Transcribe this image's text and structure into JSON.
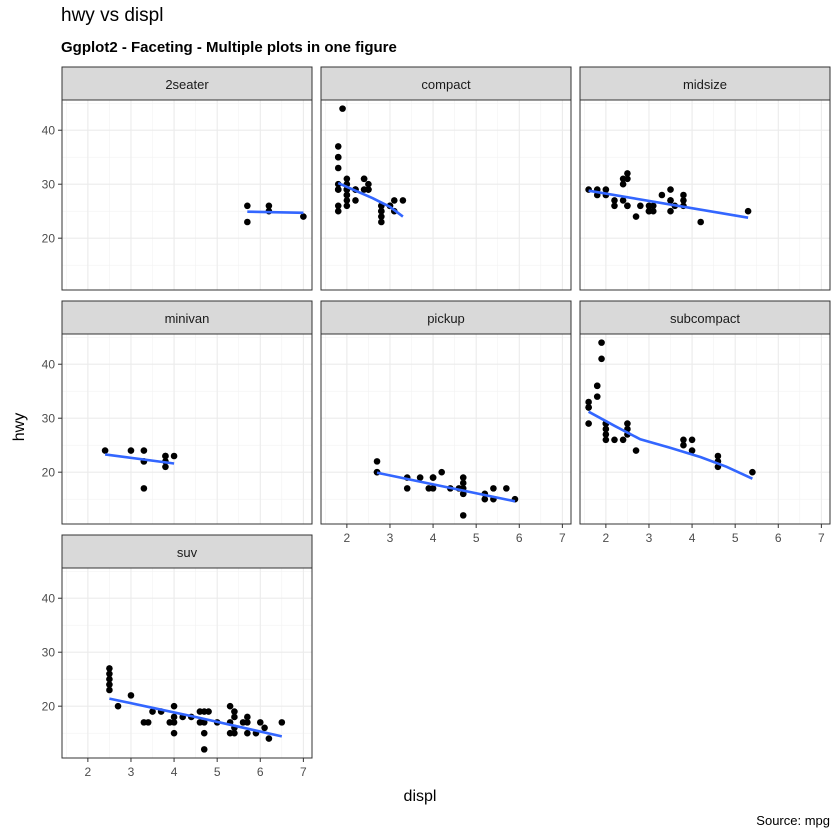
{
  "chart_data": {
    "type": "scatter",
    "title": "hwy vs displ",
    "subtitle": "Ggplot2 - Faceting - Multiple plots in one figure",
    "xlabel": "displ",
    "ylabel": "hwy",
    "caption": "Source: mpg",
    "xlim": [
      1.4,
      7.2
    ],
    "ylim": [
      10.4,
      45.6
    ],
    "x_ticks": [
      2,
      3,
      4,
      5,
      6,
      7
    ],
    "y_ticks": [
      20,
      30,
      40
    ],
    "grid": true,
    "theme": "bw",
    "point_color": "#000000",
    "smooth_color": "#3366ff",
    "strip_fill": "#d9d9d9",
    "facets": [
      {
        "label": "2seater",
        "points": [
          [
            5.7,
            26
          ],
          [
            5.7,
            23
          ],
          [
            6.2,
            26
          ],
          [
            6.2,
            25
          ],
          [
            7.0,
            24
          ]
        ],
        "smooth": [
          [
            5.7,
            24.9
          ],
          [
            7.0,
            24.7
          ]
        ]
      },
      {
        "label": "compact",
        "points": [
          [
            1.8,
            29
          ],
          [
            1.8,
            29
          ],
          [
            2.0,
            31
          ],
          [
            2.0,
            30
          ],
          [
            2.8,
            26
          ],
          [
            2.8,
            26
          ],
          [
            3.1,
            27
          ],
          [
            1.8,
            26
          ],
          [
            1.8,
            25
          ],
          [
            2.0,
            28
          ],
          [
            2.0,
            27
          ],
          [
            2.8,
            25
          ],
          [
            2.8,
            25
          ],
          [
            3.1,
            25
          ],
          [
            2.2,
            27
          ],
          [
            2.2,
            29
          ],
          [
            2.4,
            31
          ],
          [
            2.4,
            31
          ],
          [
            3.0,
            26
          ],
          [
            3.0,
            26
          ],
          [
            3.3,
            27
          ],
          [
            1.8,
            30
          ],
          [
            1.8,
            33
          ],
          [
            1.8,
            35
          ],
          [
            1.8,
            37
          ],
          [
            1.8,
            35
          ],
          [
            1.9,
            44
          ],
          [
            2.0,
            29
          ],
          [
            2.0,
            26
          ],
          [
            2.0,
            29
          ],
          [
            2.5,
            29
          ],
          [
            2.5,
            29
          ],
          [
            2.8,
            23
          ],
          [
            2.8,
            24
          ],
          [
            2.2,
            29
          ],
          [
            2.4,
            29
          ],
          [
            2.5,
            30
          ],
          [
            2.0,
            28
          ],
          [
            2.0,
            29
          ]
        ],
        "smooth": [
          [
            1.8,
            30.2
          ],
          [
            2.2,
            28.8
          ],
          [
            2.6,
            27.4
          ],
          [
            3.0,
            25.8
          ],
          [
            3.3,
            24.0
          ]
        ]
      },
      {
        "label": "midsize",
        "points": [
          [
            1.6,
            29
          ],
          [
            1.8,
            29
          ],
          [
            1.8,
            28
          ],
          [
            2.0,
            29
          ],
          [
            2.0,
            28
          ],
          [
            2.2,
            27
          ],
          [
            2.4,
            30
          ],
          [
            2.4,
            31
          ],
          [
            2.5,
            32
          ],
          [
            2.5,
            26
          ],
          [
            2.5,
            26
          ],
          [
            2.5,
            31
          ],
          [
            2.2,
            26
          ],
          [
            2.7,
            24
          ],
          [
            2.8,
            26
          ],
          [
            3.0,
            25
          ],
          [
            3.0,
            26
          ],
          [
            3.1,
            25
          ],
          [
            3.1,
            26
          ],
          [
            3.3,
            28
          ],
          [
            3.5,
            27
          ],
          [
            3.5,
            29
          ],
          [
            3.5,
            27
          ],
          [
            3.5,
            25
          ],
          [
            3.6,
            26
          ],
          [
            3.8,
            26
          ],
          [
            3.8,
            28
          ],
          [
            3.8,
            27
          ],
          [
            4.2,
            23
          ],
          [
            5.3,
            25
          ],
          [
            2.4,
            27
          ],
          [
            3.0,
            25
          ]
        ],
        "smooth": [
          [
            1.6,
            28.8
          ],
          [
            5.3,
            23.8
          ]
        ]
      },
      {
        "label": "minivan",
        "points": [
          [
            2.4,
            24
          ],
          [
            3.0,
            24
          ],
          [
            3.3,
            22
          ],
          [
            3.3,
            22
          ],
          [
            3.3,
            24
          ],
          [
            3.3,
            17
          ],
          [
            3.8,
            22
          ],
          [
            3.8,
            21
          ],
          [
            3.8,
            23
          ],
          [
            4.0,
            23
          ],
          [
            3.8,
            23
          ]
        ],
        "smooth": [
          [
            2.4,
            23.3
          ],
          [
            4.0,
            21.6
          ]
        ]
      },
      {
        "label": "pickup",
        "points": [
          [
            2.7,
            20
          ],
          [
            2.7,
            22
          ],
          [
            2.7,
            20
          ],
          [
            3.4,
            17
          ],
          [
            3.4,
            19
          ],
          [
            3.7,
            19
          ],
          [
            3.9,
            17
          ],
          [
            4.0,
            17
          ],
          [
            4.0,
            19
          ],
          [
            4.2,
            20
          ],
          [
            4.4,
            17
          ],
          [
            4.6,
            17
          ],
          [
            4.7,
            16
          ],
          [
            4.7,
            12
          ],
          [
            4.7,
            17
          ],
          [
            4.7,
            16
          ],
          [
            4.7,
            19
          ],
          [
            5.2,
            15
          ],
          [
            5.2,
            16
          ],
          [
            5.4,
            17
          ],
          [
            5.4,
            15
          ],
          [
            5.7,
            17
          ],
          [
            5.9,
            15
          ],
          [
            4.0,
            19
          ],
          [
            4.7,
            18
          ]
        ],
        "smooth": [
          [
            2.7,
            19.9
          ],
          [
            5.9,
            14.6
          ]
        ]
      },
      {
        "label": "subcompact",
        "points": [
          [
            1.6,
            33
          ],
          [
            1.6,
            32
          ],
          [
            1.6,
            29
          ],
          [
            1.6,
            32
          ],
          [
            1.8,
            34
          ],
          [
            1.8,
            36
          ],
          [
            1.8,
            36
          ],
          [
            1.9,
            44
          ],
          [
            1.9,
            41
          ],
          [
            2.0,
            29
          ],
          [
            2.0,
            28
          ],
          [
            2.0,
            29
          ],
          [
            2.0,
            26
          ],
          [
            2.0,
            27
          ],
          [
            2.2,
            26
          ],
          [
            2.5,
            28
          ],
          [
            2.5,
            29
          ],
          [
            2.5,
            27
          ],
          [
            2.7,
            24
          ],
          [
            3.8,
            26
          ],
          [
            3.8,
            25
          ],
          [
            4.0,
            26
          ],
          [
            4.0,
            24
          ],
          [
            4.6,
            21
          ],
          [
            4.6,
            22
          ],
          [
            4.6,
            23
          ],
          [
            5.4,
            20
          ],
          [
            2.4,
            26
          ]
        ],
        "smooth": [
          [
            1.6,
            31.2
          ],
          [
            2.2,
            28.6
          ],
          [
            2.8,
            26.1
          ],
          [
            3.5,
            24.5
          ],
          [
            4.2,
            22.8
          ],
          [
            4.8,
            21.0
          ],
          [
            5.4,
            18.8
          ]
        ]
      },
      {
        "label": "suv",
        "points": [
          [
            2.5,
            23
          ],
          [
            2.5,
            24
          ],
          [
            2.5,
            25
          ],
          [
            2.5,
            26
          ],
          [
            2.5,
            27
          ],
          [
            2.7,
            20
          ],
          [
            3.0,
            22
          ],
          [
            3.3,
            17
          ],
          [
            3.4,
            17
          ],
          [
            3.5,
            19
          ],
          [
            3.7,
            19
          ],
          [
            3.9,
            17
          ],
          [
            4.0,
            17
          ],
          [
            4.0,
            15
          ],
          [
            4.0,
            20
          ],
          [
            4.2,
            18
          ],
          [
            4.4,
            18
          ],
          [
            4.6,
            17
          ],
          [
            4.6,
            19
          ],
          [
            4.7,
            15
          ],
          [
            4.7,
            17
          ],
          [
            4.7,
            19
          ],
          [
            4.7,
            12
          ],
          [
            4.8,
            19
          ],
          [
            5.0,
            17
          ],
          [
            5.3,
            20
          ],
          [
            5.3,
            17
          ],
          [
            5.3,
            15
          ],
          [
            5.4,
            18
          ],
          [
            5.4,
            16
          ],
          [
            5.4,
            19
          ],
          [
            5.7,
            17
          ],
          [
            5.7,
            18
          ],
          [
            5.7,
            15
          ],
          [
            6.0,
            17
          ],
          [
            6.1,
            16
          ],
          [
            6.2,
            14
          ],
          [
            6.5,
            17
          ],
          [
            4.0,
            18
          ],
          [
            5.6,
            17
          ],
          [
            5.9,
            15
          ],
          [
            5.4,
            15
          ]
        ],
        "smooth": [
          [
            2.5,
            21.4
          ],
          [
            3.5,
            19.7
          ],
          [
            4.5,
            18.0
          ],
          [
            5.5,
            16.2
          ],
          [
            6.5,
            14.4
          ]
        ]
      }
    ]
  }
}
